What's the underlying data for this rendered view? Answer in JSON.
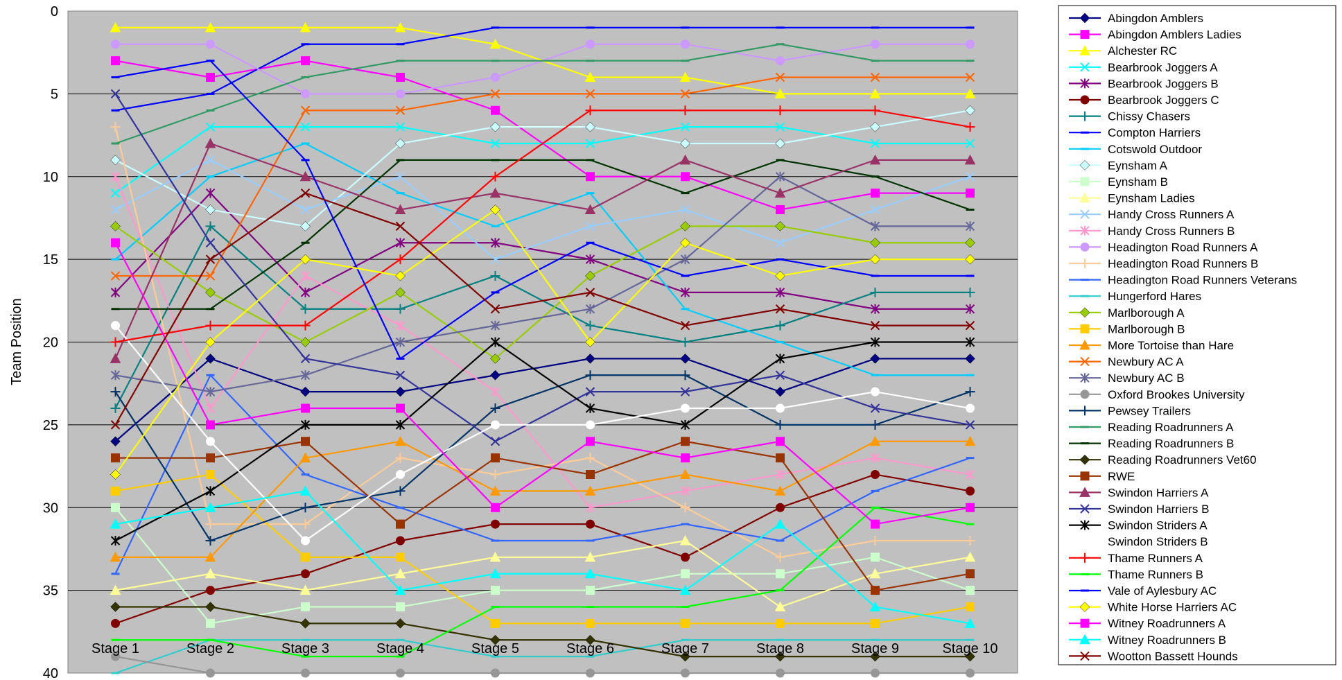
{
  "chart_data": {
    "type": "line",
    "title": "",
    "xlabel": "",
    "ylabel": "Team Position",
    "ylim": [
      0,
      40
    ],
    "y_inverted": true,
    "y_ticks": [
      0,
      5,
      10,
      15,
      20,
      25,
      30,
      35,
      40
    ],
    "grid": "horizontal",
    "legend_position": "right",
    "plot_background": "#c0c0c0",
    "categories": [
      "Stage 1",
      "Stage 2",
      "Stage 3",
      "Stage 4",
      "Stage 5",
      "Stage 6",
      "Stage 7",
      "Stage 8",
      "Stage 9",
      "Stage 10"
    ],
    "series": [
      {
        "name": "Abingdon Amblers",
        "color": "#000080",
        "marker": "diamond",
        "values": [
          26,
          21,
          23,
          23,
          22,
          21,
          21,
          23,
          21,
          21
        ]
      },
      {
        "name": "Abingdon Amblers Ladies",
        "color": "#ff00ff",
        "marker": "square",
        "values": [
          3,
          4,
          3,
          4,
          6,
          10,
          10,
          12,
          11,
          11
        ]
      },
      {
        "name": "Alchester RC",
        "color": "#ffff00",
        "marker": "triangle",
        "values": [
          1,
          1,
          1,
          1,
          2,
          4,
          4,
          5,
          5,
          5
        ]
      },
      {
        "name": "Bearbrook Joggers A",
        "color": "#00ffff",
        "marker": "x",
        "values": [
          11,
          7,
          7,
          7,
          8,
          8,
          7,
          7,
          8,
          8
        ]
      },
      {
        "name": "Bearbrook Joggers B",
        "color": "#800080",
        "marker": "star",
        "values": [
          17,
          11,
          17,
          14,
          14,
          15,
          17,
          17,
          18,
          18
        ]
      },
      {
        "name": "Bearbrook Joggers C",
        "color": "#800000",
        "marker": "circle",
        "values": [
          37,
          35,
          34,
          32,
          31,
          31,
          33,
          30,
          28,
          29
        ]
      },
      {
        "name": "Chissy Chasers",
        "color": "#008080",
        "marker": "plus",
        "values": [
          24,
          13,
          18,
          18,
          16,
          19,
          20,
          19,
          17,
          17
        ]
      },
      {
        "name": "Compton Harriers",
        "color": "#0000ff",
        "marker": "dash",
        "values": [
          6,
          5,
          2,
          2,
          1,
          1,
          1,
          1,
          1,
          1
        ]
      },
      {
        "name": "Cotswold Outdoor",
        "color": "#00ccff",
        "marker": "dash",
        "values": [
          15,
          10,
          8,
          11,
          13,
          11,
          18,
          20,
          22,
          22
        ]
      },
      {
        "name": "Eynsham A",
        "color": "#ccffff",
        "marker": "diamond",
        "values": [
          9,
          12,
          13,
          8,
          7,
          7,
          8,
          8,
          7,
          6
        ]
      },
      {
        "name": "Eynsham B",
        "color": "#ccffcc",
        "marker": "square",
        "values": [
          30,
          37,
          36,
          36,
          35,
          35,
          34,
          34,
          33,
          35
        ]
      },
      {
        "name": "Eynsham Ladies",
        "color": "#ffff99",
        "marker": "triangle",
        "values": [
          35,
          34,
          35,
          34,
          33,
          33,
          32,
          36,
          34,
          33
        ]
      },
      {
        "name": "Handy Cross Runners A",
        "color": "#99ccff",
        "marker": "x",
        "values": [
          12,
          9,
          12,
          10,
          15,
          13,
          12,
          14,
          12,
          10
        ]
      },
      {
        "name": "Handy Cross Runners B",
        "color": "#ff99cc",
        "marker": "star",
        "values": [
          10,
          24,
          16,
          19,
          23,
          30,
          29,
          28,
          27,
          28
        ]
      },
      {
        "name": "Headington Road Runners A",
        "color": "#cc99ff",
        "marker": "circle",
        "values": [
          2,
          2,
          5,
          5,
          4,
          2,
          2,
          3,
          2,
          2
        ]
      },
      {
        "name": "Headington Road Runners B",
        "color": "#ffcc99",
        "marker": "plus",
        "values": [
          7,
          31,
          31,
          27,
          28,
          27,
          30,
          33,
          32,
          32
        ]
      },
      {
        "name": "Headington Road Runners Veterans",
        "color": "#3366ff",
        "marker": "dash",
        "values": [
          34,
          22,
          28,
          30,
          32,
          32,
          31,
          32,
          29,
          27
        ]
      },
      {
        "name": "Hungerford Hares",
        "color": "#33cccc",
        "marker": "dash",
        "values": [
          40,
          38,
          38,
          38,
          39,
          39,
          38,
          38,
          38,
          38
        ]
      },
      {
        "name": "Marlborough A",
        "color": "#99cc00",
        "marker": "diamond",
        "values": [
          13,
          17,
          20,
          17,
          21,
          16,
          13,
          13,
          14,
          14
        ]
      },
      {
        "name": "Marlborough B",
        "color": "#ffcc00",
        "marker": "square",
        "values": [
          29,
          28,
          33,
          33,
          37,
          37,
          37,
          37,
          37,
          36
        ]
      },
      {
        "name": "More Tortoise than Hare",
        "color": "#ff9900",
        "marker": "triangle",
        "values": [
          33,
          33,
          27,
          26,
          29,
          29,
          28,
          29,
          26,
          26
        ]
      },
      {
        "name": "Newbury AC A",
        "color": "#ff6600",
        "marker": "x",
        "values": [
          16,
          16,
          6,
          6,
          5,
          5,
          5,
          4,
          4,
          4
        ]
      },
      {
        "name": "Newbury AC B",
        "color": "#666699",
        "marker": "star",
        "values": [
          22,
          23,
          22,
          20,
          19,
          18,
          15,
          10,
          13,
          13
        ]
      },
      {
        "name": "Oxford Brookes University",
        "color": "#969696",
        "marker": "circle",
        "values": [
          39,
          40,
          40,
          40,
          40,
          40,
          40,
          40,
          40,
          40
        ]
      },
      {
        "name": "Pewsey Trailers",
        "color": "#003366",
        "marker": "plus",
        "values": [
          23,
          32,
          30,
          29,
          24,
          22,
          22,
          25,
          25,
          23
        ]
      },
      {
        "name": "Reading Roadrunners A",
        "color": "#339966",
        "marker": "dash",
        "values": [
          8,
          6,
          4,
          3,
          3,
          3,
          3,
          2,
          3,
          3
        ]
      },
      {
        "name": "Reading Roadrunners B",
        "color": "#003300",
        "marker": "dash",
        "values": [
          18,
          18,
          14,
          9,
          9,
          9,
          11,
          9,
          10,
          12
        ]
      },
      {
        "name": "Reading Roadrunners Vet60",
        "color": "#333300",
        "marker": "diamond",
        "values": [
          36,
          36,
          37,
          37,
          38,
          38,
          39,
          39,
          39,
          39
        ]
      },
      {
        "name": "RWE",
        "color": "#993300",
        "marker": "square",
        "values": [
          27,
          27,
          26,
          31,
          27,
          28,
          26,
          27,
          35,
          34
        ]
      },
      {
        "name": "Swindon Harriers A",
        "color": "#993366",
        "marker": "triangle",
        "values": [
          21,
          8,
          10,
          12,
          11,
          12,
          9,
          11,
          9,
          9
        ]
      },
      {
        "name": "Swindon Harriers B",
        "color": "#333399",
        "marker": "x",
        "values": [
          5,
          14,
          21,
          22,
          26,
          23,
          23,
          22,
          24,
          25
        ]
      },
      {
        "name": "Swindon Striders A",
        "color": "#000000",
        "marker": "star",
        "values": [
          32,
          29,
          25,
          25,
          20,
          24,
          25,
          21,
          20,
          20
        ]
      },
      {
        "name": "Swindon Striders B",
        "color": "#ffffff",
        "marker": "circle",
        "values": [
          19,
          26,
          32,
          28,
          25,
          25,
          24,
          24,
          23,
          24
        ]
      },
      {
        "name": "Thame Runners A",
        "color": "#ff0000",
        "marker": "plus",
        "values": [
          20,
          19,
          19,
          15,
          10,
          6,
          6,
          6,
          6,
          7
        ]
      },
      {
        "name": "Thame Runners B",
        "color": "#00ff00",
        "marker": "dash",
        "values": [
          38,
          38,
          39,
          39,
          36,
          36,
          36,
          35,
          30,
          31
        ]
      },
      {
        "name": "Vale of Aylesbury AC",
        "color": "#0000ff",
        "marker": "dash",
        "values": [
          4,
          3,
          9,
          21,
          17,
          14,
          16,
          15,
          16,
          16
        ]
      },
      {
        "name": "White Horse Harriers AC",
        "color": "#ffff00",
        "marker": "diamond",
        "values": [
          28,
          20,
          15,
          16,
          12,
          20,
          14,
          16,
          15,
          15
        ]
      },
      {
        "name": "Witney Roadrunners A",
        "color": "#ff00ff",
        "marker": "square",
        "values": [
          14,
          25,
          24,
          24,
          30,
          26,
          27,
          26,
          31,
          30
        ]
      },
      {
        "name": "Witney Roadrunners B",
        "color": "#00ffff",
        "marker": "triangle",
        "values": [
          31,
          30,
          29,
          35,
          34,
          34,
          35,
          31,
          36,
          37
        ]
      },
      {
        "name": "Wootton Bassett Hounds",
        "color": "#800000",
        "marker": "x",
        "values": [
          25,
          15,
          11,
          13,
          18,
          17,
          19,
          18,
          19,
          19
        ]
      }
    ]
  }
}
